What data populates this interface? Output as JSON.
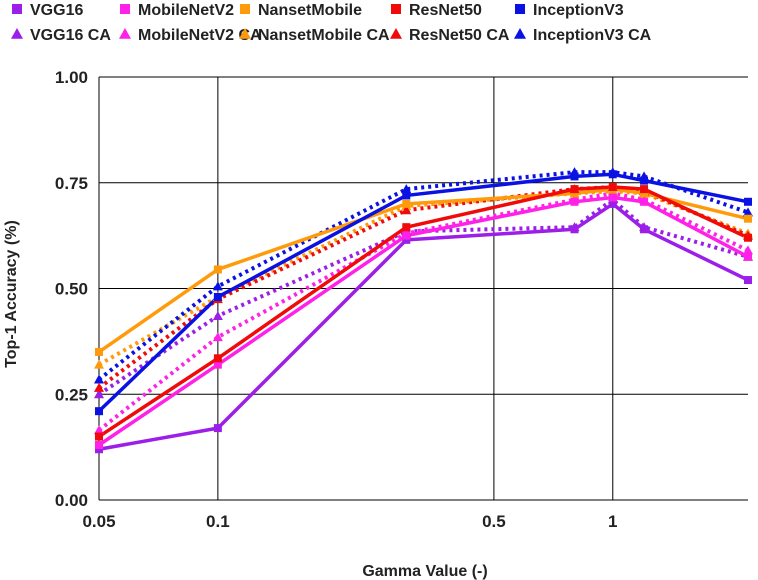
{
  "chart_data": {
    "type": "line",
    "x_scale": "log",
    "xlabel": "Gamma Value (-)",
    "ylabel": "Top-1 Accuracy  (%)",
    "xlim": [
      0.05,
      2.2
    ],
    "ylim": [
      0,
      1
    ],
    "x_ticks": [
      0.05,
      0.1,
      0.5,
      1
    ],
    "x_tick_labels": [
      "0.05",
      "0.1",
      "0.5",
      "1"
    ],
    "y_ticks": [
      0,
      0.25,
      0.5,
      0.75,
      1
    ],
    "y_tick_labels": [
      "0.00",
      "0.25",
      "0.50",
      "0.75",
      "1.00"
    ],
    "grid": true,
    "legend_position": "top",
    "x": [
      0.05,
      0.1,
      0.3,
      0.8,
      1.0,
      1.2,
      2.2
    ],
    "series": [
      {
        "name": "VGG16",
        "color": "#9b1fe8",
        "marker": "square",
        "style": "solid",
        "values": [
          0.12,
          0.17,
          0.615,
          0.64,
          0.7,
          0.64,
          0.52
        ]
      },
      {
        "name": "MobileNetV2",
        "color": "#ff21e8",
        "marker": "square",
        "style": "solid",
        "values": [
          0.13,
          0.32,
          0.625,
          0.705,
          0.715,
          0.705,
          0.575
        ]
      },
      {
        "name": "NansetMobile",
        "color": "#ff9a0a",
        "marker": "square",
        "style": "solid",
        "values": [
          0.35,
          0.545,
          0.7,
          0.725,
          0.735,
          0.725,
          0.665
        ]
      },
      {
        "name": "ResNet50",
        "color": "#f00a0a",
        "marker": "square",
        "style": "solid",
        "values": [
          0.15,
          0.335,
          0.645,
          0.735,
          0.74,
          0.735,
          0.62
        ]
      },
      {
        "name": "InceptionV3",
        "color": "#0a12e3",
        "marker": "square",
        "style": "solid",
        "values": [
          0.21,
          0.48,
          0.72,
          0.765,
          0.77,
          0.755,
          0.705
        ]
      },
      {
        "name": "VGG16 CA",
        "color": "#9b1fe8",
        "marker": "triangle",
        "style": "dotted",
        "values": [
          0.25,
          0.435,
          0.635,
          0.645,
          0.71,
          0.645,
          0.575
        ]
      },
      {
        "name": "MobileNetV2 CA",
        "color": "#ff21e8",
        "marker": "triangle",
        "style": "dotted",
        "values": [
          0.165,
          0.385,
          0.63,
          0.71,
          0.725,
          0.71,
          0.59
        ]
      },
      {
        "name": "NansetMobile CA",
        "color": "#ff9a0a",
        "marker": "triangle",
        "style": "dotted",
        "values": [
          0.32,
          0.48,
          0.695,
          0.725,
          0.73,
          0.725,
          0.63
        ]
      },
      {
        "name": "ResNet50 CA",
        "color": "#f00a0a",
        "marker": "triangle",
        "style": "dotted",
        "values": [
          0.265,
          0.475,
          0.685,
          0.735,
          0.74,
          0.73,
          0.625
        ]
      },
      {
        "name": "InceptionV3 CA",
        "color": "#0a12e3",
        "marker": "triangle",
        "style": "dotted",
        "values": [
          0.285,
          0.505,
          0.735,
          0.775,
          0.775,
          0.765,
          0.68
        ]
      }
    ]
  }
}
